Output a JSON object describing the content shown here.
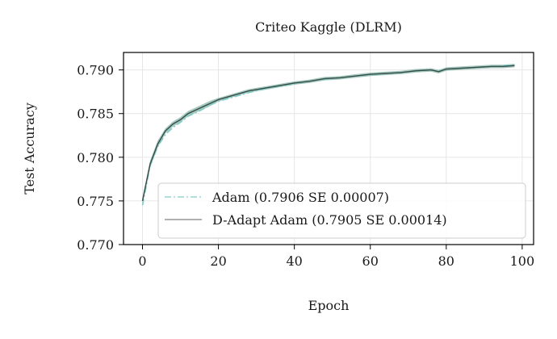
{
  "chart_data": {
    "type": "line",
    "title": "Criteo Kaggle (DLRM)",
    "xlabel": "Epoch",
    "ylabel": "Test Accuracy",
    "xlim": [
      -5,
      103
    ],
    "ylim": [
      0.77,
      0.792
    ],
    "xticks": [
      0,
      20,
      40,
      60,
      80,
      100
    ],
    "xtick_labels": [
      "0",
      "20",
      "40",
      "60",
      "80",
      "100"
    ],
    "yticks": [
      0.77,
      0.775,
      0.78,
      0.785,
      0.79
    ],
    "ytick_labels": [
      "0.770",
      "0.775",
      "0.780",
      "0.785",
      "0.790"
    ],
    "grid": true,
    "legend_position": "lower-right",
    "x": [
      0,
      2,
      4,
      6,
      8,
      10,
      12,
      15,
      18,
      20,
      24,
      28,
      32,
      36,
      40,
      44,
      48,
      52,
      56,
      60,
      64,
      68,
      72,
      76,
      78,
      80,
      84,
      88,
      92,
      95,
      98
    ],
    "series": [
      {
        "name": "Adam (0.7906 SE 0.00007)",
        "color": "#7fcdc8",
        "style": "dashdot",
        "values": [
          0.7745,
          0.779,
          0.7812,
          0.7826,
          0.7834,
          0.784,
          0.7847,
          0.7853,
          0.786,
          0.7864,
          0.7869,
          0.7874,
          0.7878,
          0.7881,
          0.7884,
          0.7887,
          0.7889,
          0.7891,
          0.7893,
          0.7894,
          0.7896,
          0.7897,
          0.7899,
          0.79,
          0.7899,
          0.7901,
          0.7902,
          0.7903,
          0.7904,
          0.7905,
          0.7906
        ]
      },
      {
        "name": "D-Adapt Adam (0.7905 SE 0.00014)",
        "color": "#808080",
        "style": "solid",
        "band_color": "#5e9e8a",
        "values": [
          0.775,
          0.7792,
          0.7815,
          0.783,
          0.7838,
          0.7843,
          0.785,
          0.7856,
          0.7862,
          0.7866,
          0.7871,
          0.7876,
          0.7879,
          0.7882,
          0.7885,
          0.7887,
          0.789,
          0.7891,
          0.7893,
          0.7895,
          0.7896,
          0.7897,
          0.7899,
          0.79,
          0.7898,
          0.7901,
          0.7902,
          0.7903,
          0.7904,
          0.7904,
          0.7905
        ],
        "se": [
          0.0004,
          0.0004,
          0.0004,
          0.0003,
          0.0003,
          0.0003,
          0.0003,
          0.0003,
          0.0003,
          0.0002,
          0.0002,
          0.0002,
          0.0002,
          0.0002,
          0.0002,
          0.0002,
          0.0002,
          0.0002,
          0.0002,
          0.0002,
          0.0002,
          0.0002,
          0.0002,
          0.0002,
          0.0002,
          0.0002,
          0.0002,
          0.0002,
          0.0002,
          0.0002,
          0.0002
        ]
      }
    ]
  }
}
